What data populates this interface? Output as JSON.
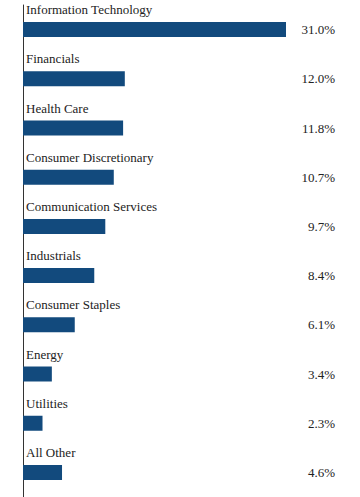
{
  "chart_data": {
    "type": "bar",
    "orientation": "horizontal",
    "categories": [
      "Information Technology",
      "Financials",
      "Health Care",
      "Consumer Discretionary",
      "Communication Services",
      "Industrials",
      "Consumer Staples",
      "Energy",
      "Utilities",
      "All Other"
    ],
    "values": [
      31.0,
      12.0,
      11.8,
      10.7,
      9.7,
      8.4,
      6.1,
      3.4,
      2.3,
      4.6
    ],
    "value_labels": [
      "31.0%",
      "12.0%",
      "11.8%",
      "10.7%",
      "9.7%",
      "8.4%",
      "6.1%",
      "3.4%",
      "2.3%",
      "4.6%"
    ],
    "color": "#124a7d",
    "xlim": [
      0,
      31
    ],
    "data_labels": true,
    "tick_labels": false,
    "grid": false
  }
}
